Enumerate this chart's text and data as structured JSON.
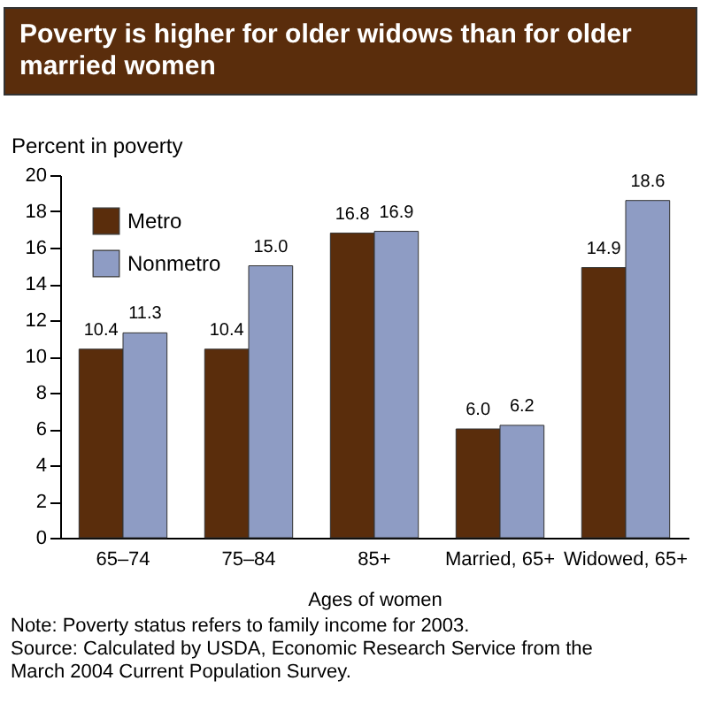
{
  "chart_data": {
    "type": "bar",
    "title": "Poverty is higher for older widows than for older married women",
    "categories": [
      "65–74",
      "75–84",
      "85+",
      "Married, 65+",
      "Widowed, 65+"
    ],
    "series": [
      {
        "name": "Metro",
        "color": "#5a2d0c",
        "values": [
          10.4,
          10.4,
          16.8,
          6.0,
          14.9
        ],
        "value_labels": [
          "10.4",
          "10.4",
          "16.8",
          "6.0",
          "14.9"
        ]
      },
      {
        "name": "Nonmetro",
        "color": "#8e9cc4",
        "values": [
          11.3,
          15.0,
          16.9,
          6.2,
          18.6
        ],
        "value_labels": [
          "11.3",
          "15.0",
          "16.9",
          "6.2",
          "18.6"
        ]
      }
    ],
    "xlabel": "Ages of women",
    "ylabel": "Percent in poverty",
    "ylim": [
      0,
      20
    ],
    "yticks": [
      0,
      2,
      4,
      6,
      8,
      10,
      12,
      14,
      16,
      18,
      20
    ],
    "grid": false,
    "legend": "top left",
    "annotations": [
      "Note: Poverty status refers to family income for 2003.",
      "Source: Calculated by USDA, Economic Research Service from the March 2004 Current Population Survey."
    ]
  }
}
